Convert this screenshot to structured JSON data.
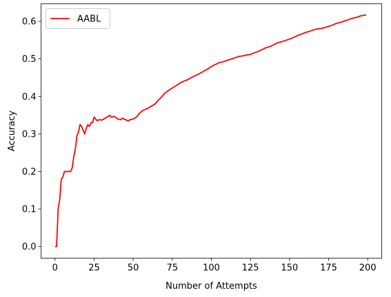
{
  "chart_data": {
    "type": "line",
    "title": "",
    "xlabel": "Number of Attempts",
    "ylabel": "Accuracy",
    "xlim": [
      -8.95,
      208.95
    ],
    "ylim": [
      -0.031,
      0.647
    ],
    "xticks": [
      0,
      25,
      50,
      75,
      100,
      125,
      150,
      175,
      200
    ],
    "yticks": [
      0.0,
      0.1,
      0.2,
      0.3,
      0.4,
      0.5,
      0.6
    ],
    "grid": false,
    "legend": {
      "position": "upper-left"
    },
    "series": [
      {
        "name": "AABL",
        "color": "#ff0000",
        "points": [
          [
            0,
            0.0
          ],
          [
            1,
            0.0
          ],
          [
            2,
            0.1
          ],
          [
            3,
            0.125
          ],
          [
            4,
            0.18
          ],
          [
            5,
            0.185
          ],
          [
            6,
            0.2
          ],
          [
            7,
            0.2
          ],
          [
            8,
            0.2
          ],
          [
            9,
            0.2
          ],
          [
            10,
            0.2
          ],
          [
            11,
            0.21
          ],
          [
            12,
            0.24
          ],
          [
            13,
            0.26
          ],
          [
            14,
            0.295
          ],
          [
            15,
            0.305
          ],
          [
            16,
            0.325
          ],
          [
            17,
            0.32
          ],
          [
            18,
            0.31
          ],
          [
            19,
            0.3
          ],
          [
            20,
            0.315
          ],
          [
            21,
            0.325
          ],
          [
            22,
            0.32
          ],
          [
            23,
            0.33
          ],
          [
            24,
            0.33
          ],
          [
            25,
            0.345
          ],
          [
            26,
            0.34
          ],
          [
            27,
            0.335
          ],
          [
            28,
            0.338
          ],
          [
            30,
            0.337
          ],
          [
            32,
            0.342
          ],
          [
            34,
            0.347
          ],
          [
            35,
            0.35
          ],
          [
            36,
            0.345
          ],
          [
            37,
            0.346
          ],
          [
            38,
            0.347
          ],
          [
            40,
            0.34
          ],
          [
            42,
            0.338
          ],
          [
            43,
            0.342
          ],
          [
            45,
            0.338
          ],
          [
            47,
            0.335
          ],
          [
            48,
            0.338
          ],
          [
            50,
            0.34
          ],
          [
            52,
            0.345
          ],
          [
            54,
            0.355
          ],
          [
            56,
            0.362
          ],
          [
            58,
            0.366
          ],
          [
            60,
            0.37
          ],
          [
            62,
            0.375
          ],
          [
            64,
            0.38
          ],
          [
            66,
            0.39
          ],
          [
            68,
            0.398
          ],
          [
            70,
            0.408
          ],
          [
            72,
            0.414
          ],
          [
            74,
            0.42
          ],
          [
            76,
            0.425
          ],
          [
            78,
            0.43
          ],
          [
            80,
            0.436
          ],
          [
            82,
            0.44
          ],
          [
            85,
            0.445
          ],
          [
            88,
            0.452
          ],
          [
            90,
            0.456
          ],
          [
            92,
            0.46
          ],
          [
            95,
            0.467
          ],
          [
            98,
            0.474
          ],
          [
            100,
            0.48
          ],
          [
            103,
            0.486
          ],
          [
            105,
            0.49
          ],
          [
            108,
            0.493
          ],
          [
            110,
            0.496
          ],
          [
            113,
            0.5
          ],
          [
            115,
            0.503
          ],
          [
            118,
            0.507
          ],
          [
            120,
            0.508
          ],
          [
            122,
            0.51
          ],
          [
            125,
            0.512
          ],
          [
            128,
            0.517
          ],
          [
            130,
            0.52
          ],
          [
            133,
            0.526
          ],
          [
            135,
            0.53
          ],
          [
            138,
            0.534
          ],
          [
            140,
            0.538
          ],
          [
            143,
            0.544
          ],
          [
            145,
            0.546
          ],
          [
            148,
            0.55
          ],
          [
            150,
            0.553
          ],
          [
            153,
            0.558
          ],
          [
            155,
            0.562
          ],
          [
            158,
            0.567
          ],
          [
            160,
            0.57
          ],
          [
            163,
            0.574
          ],
          [
            165,
            0.577
          ],
          [
            168,
            0.58
          ],
          [
            170,
            0.581
          ],
          [
            173,
            0.584
          ],
          [
            175,
            0.587
          ],
          [
            178,
            0.591
          ],
          [
            180,
            0.595
          ],
          [
            183,
            0.598
          ],
          [
            185,
            0.601
          ],
          [
            188,
            0.605
          ],
          [
            190,
            0.608
          ],
          [
            193,
            0.611
          ],
          [
            195,
            0.614
          ],
          [
            197,
            0.616
          ],
          [
            199,
            0.617
          ]
        ]
      }
    ]
  }
}
